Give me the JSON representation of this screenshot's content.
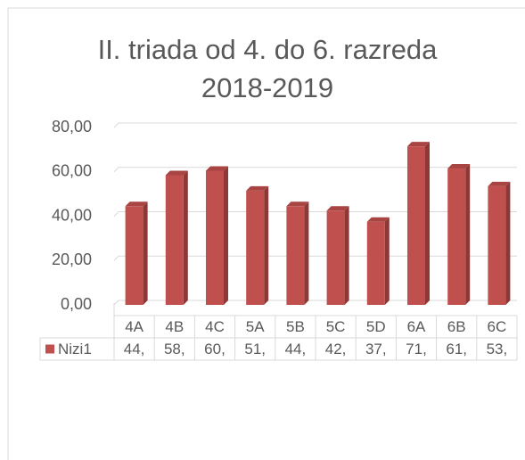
{
  "chart_data": {
    "type": "bar",
    "title": [
      "II. triada od 4. do 6. razreda",
      "2018-2019"
    ],
    "categories": [
      "4A",
      "4B",
      "4C",
      "5A",
      "5B",
      "5C",
      "5D",
      "6A",
      "6B",
      "6C"
    ],
    "series": [
      {
        "name": "Nizi1",
        "color": "#c0504d",
        "values": [
          44.5,
          58.5,
          60.5,
          51.5,
          44.5,
          42.5,
          37.5,
          71.5,
          61.5,
          53.5
        ],
        "value_labels": [
          "44,",
          "58,",
          "60,",
          "51,",
          "44,",
          "42,",
          "37,",
          "71,",
          "61,",
          "53,"
        ]
      }
    ],
    "ylim": [
      0,
      80
    ],
    "yticks": [
      {
        "value": 0,
        "label": "0,00"
      },
      {
        "value": 20,
        "label": "20,00"
      },
      {
        "value": 40,
        "label": "40,00"
      },
      {
        "value": 60,
        "label": "60,00"
      },
      {
        "value": 80,
        "label": "80,00"
      }
    ],
    "grid": true
  }
}
